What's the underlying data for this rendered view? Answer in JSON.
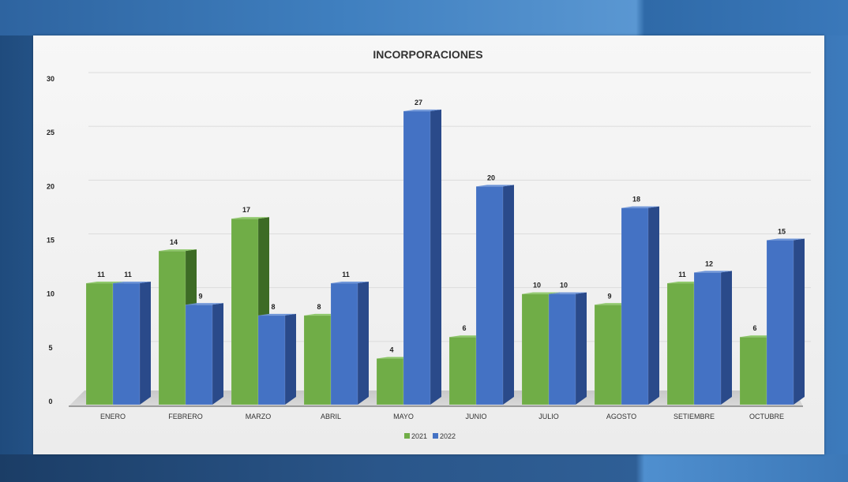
{
  "chart_data": {
    "type": "bar",
    "title": "INCORPORACIONES",
    "xlabel": "",
    "ylabel": "",
    "ylim": [
      0,
      30
    ],
    "yticks": [
      0,
      5,
      10,
      15,
      20,
      25,
      30
    ],
    "grid": true,
    "legend_position": "bottom",
    "categories": [
      "ENERO",
      "FEBRERO",
      "MARZO",
      "ABRIL",
      "MAYO",
      "JUNIO",
      "JULIO",
      "AGOSTO",
      "SETIEMBRE",
      "OCTUBRE"
    ],
    "series": [
      {
        "name": "2021",
        "color": "#70ad47",
        "values": [
          11,
          14,
          17,
          8,
          4,
          6,
          10,
          9,
          11,
          6
        ]
      },
      {
        "name": "2022",
        "color": "#4472c4",
        "values": [
          11,
          9,
          8,
          11,
          27,
          20,
          10,
          18,
          12,
          15
        ]
      }
    ]
  }
}
